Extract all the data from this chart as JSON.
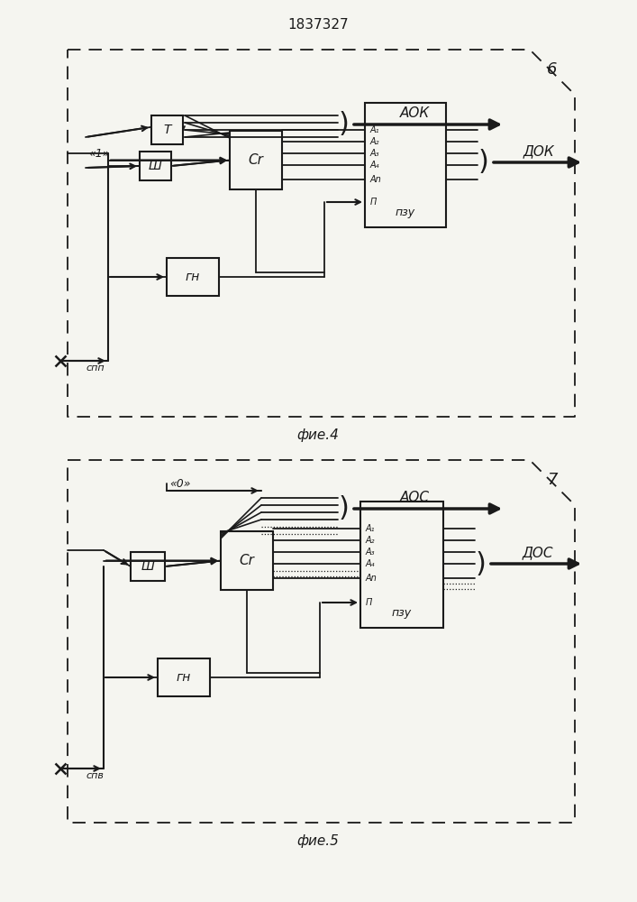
{
  "title": "1837327",
  "fig4_label": "6",
  "fig4_caption": "фие.4",
  "fig5_label": "7",
  "fig5_caption": "фие.5",
  "bg_color": "#f5f5f0",
  "line_color": "#1a1a1a",
  "fig4": {
    "input_label": "«1»",
    "block_T": "T",
    "block_Sh": "Ш",
    "block_Cr": "Cr",
    "block_PZU": "пзу",
    "block_GN": "гн",
    "label_AOK": "АОК",
    "label_DOK": "ДОК",
    "label_A1": "А₁",
    "label_A2": "А₂",
    "label_A3": "А₃",
    "label_A4": "А₄",
    "label_An": "Аn",
    "label_P": "П",
    "label_SPP": "спп"
  },
  "fig5": {
    "input_label": "«0»",
    "block_Sh": "Ш",
    "block_Cr": "Cr",
    "block_PZU": "пзу",
    "block_GN": "гн",
    "label_AOC": "АОС",
    "label_DOC": "ДОС",
    "label_A1": "А₁",
    "label_A2": "А₂",
    "label_A3": "А₃",
    "label_A4": "А₄",
    "label_An": "Аn",
    "label_P": "П",
    "label_SPB": "спв"
  }
}
